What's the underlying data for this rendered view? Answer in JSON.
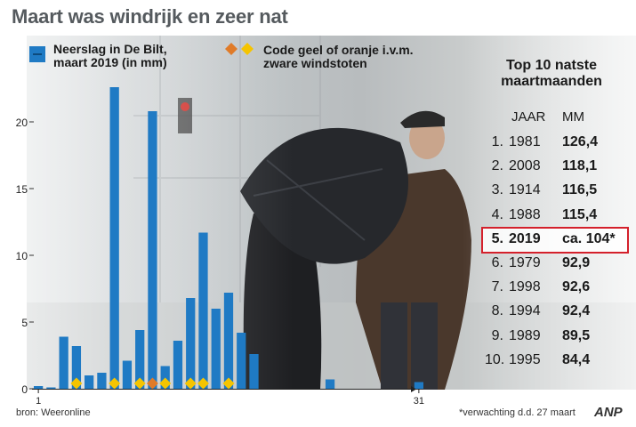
{
  "title": "Maart was windrijk en zeer nat",
  "legend": {
    "rain_label_line1": "Neerslag in De Bilt,",
    "rain_label_line2": "maart 2019 (in mm)",
    "code_label_line1": "Code geel of oranje i.v.m.",
    "code_label_line2": "zware windstoten"
  },
  "colors": {
    "bar": "#1f7ac4",
    "code_yellow": "#f5c400",
    "code_orange": "#e07b28",
    "highlight_border": "#d4202b"
  },
  "chart_data": {
    "type": "bar",
    "days": [
      1,
      2,
      3,
      4,
      5,
      6,
      7,
      8,
      9,
      10,
      11,
      12,
      13,
      14,
      15,
      16,
      17,
      18,
      19,
      20,
      21,
      22,
      23,
      24,
      25,
      26,
      27,
      28,
      29,
      30,
      31
    ],
    "values": [
      0.2,
      0.1,
      3.9,
      3.2,
      1.0,
      1.2,
      22.6,
      2.1,
      4.4,
      20.8,
      1.7,
      3.6,
      6.8,
      11.7,
      6.0,
      7.2,
      4.2,
      2.6,
      0,
      0,
      0,
      0,
      0,
      0.7,
      0,
      0,
      0,
      0,
      0,
      0,
      0.5
    ],
    "code_warnings": [
      {
        "day": 4,
        "color": "yellow"
      },
      {
        "day": 7,
        "color": "yellow"
      },
      {
        "day": 9,
        "color": "yellow"
      },
      {
        "day": 10,
        "color": "orange"
      },
      {
        "day": 11,
        "color": "yellow"
      },
      {
        "day": 13,
        "color": "yellow"
      },
      {
        "day": 14,
        "color": "yellow"
      },
      {
        "day": 16,
        "color": "yellow"
      }
    ],
    "yticks": [
      0,
      5,
      10,
      15,
      20
    ],
    "ylim": [
      0,
      25
    ],
    "x_start_label": "1",
    "x_end_label": "31"
  },
  "top10": {
    "title_line1": "Top 10 natste",
    "title_line2": "maartmaanden",
    "header_year": "JAAR",
    "header_mm": "MM",
    "rows": [
      {
        "rank": "1.",
        "year": "1981",
        "mm": "126,4"
      },
      {
        "rank": "2.",
        "year": "2008",
        "mm": "118,1"
      },
      {
        "rank": "3.",
        "year": "1914",
        "mm": "116,5"
      },
      {
        "rank": "4.",
        "year": "1988",
        "mm": "115,4"
      },
      {
        "rank": "5.",
        "year": "2019",
        "mm": "ca. 104*"
      },
      {
        "rank": "6.",
        "year": "1979",
        "mm": "92,9"
      },
      {
        "rank": "7.",
        "year": "1998",
        "mm": "92,6"
      },
      {
        "rank": "8.",
        "year": "1994",
        "mm": "92,4"
      },
      {
        "rank": "9.",
        "year": "1989",
        "mm": "89,5"
      },
      {
        "rank": "10.",
        "year": "1995",
        "mm": "84,4"
      }
    ],
    "highlight_index": 4
  },
  "source": "bron: Weeronline",
  "footnote": "*verwachting d.d. 27 maart",
  "logo": "ANP"
}
